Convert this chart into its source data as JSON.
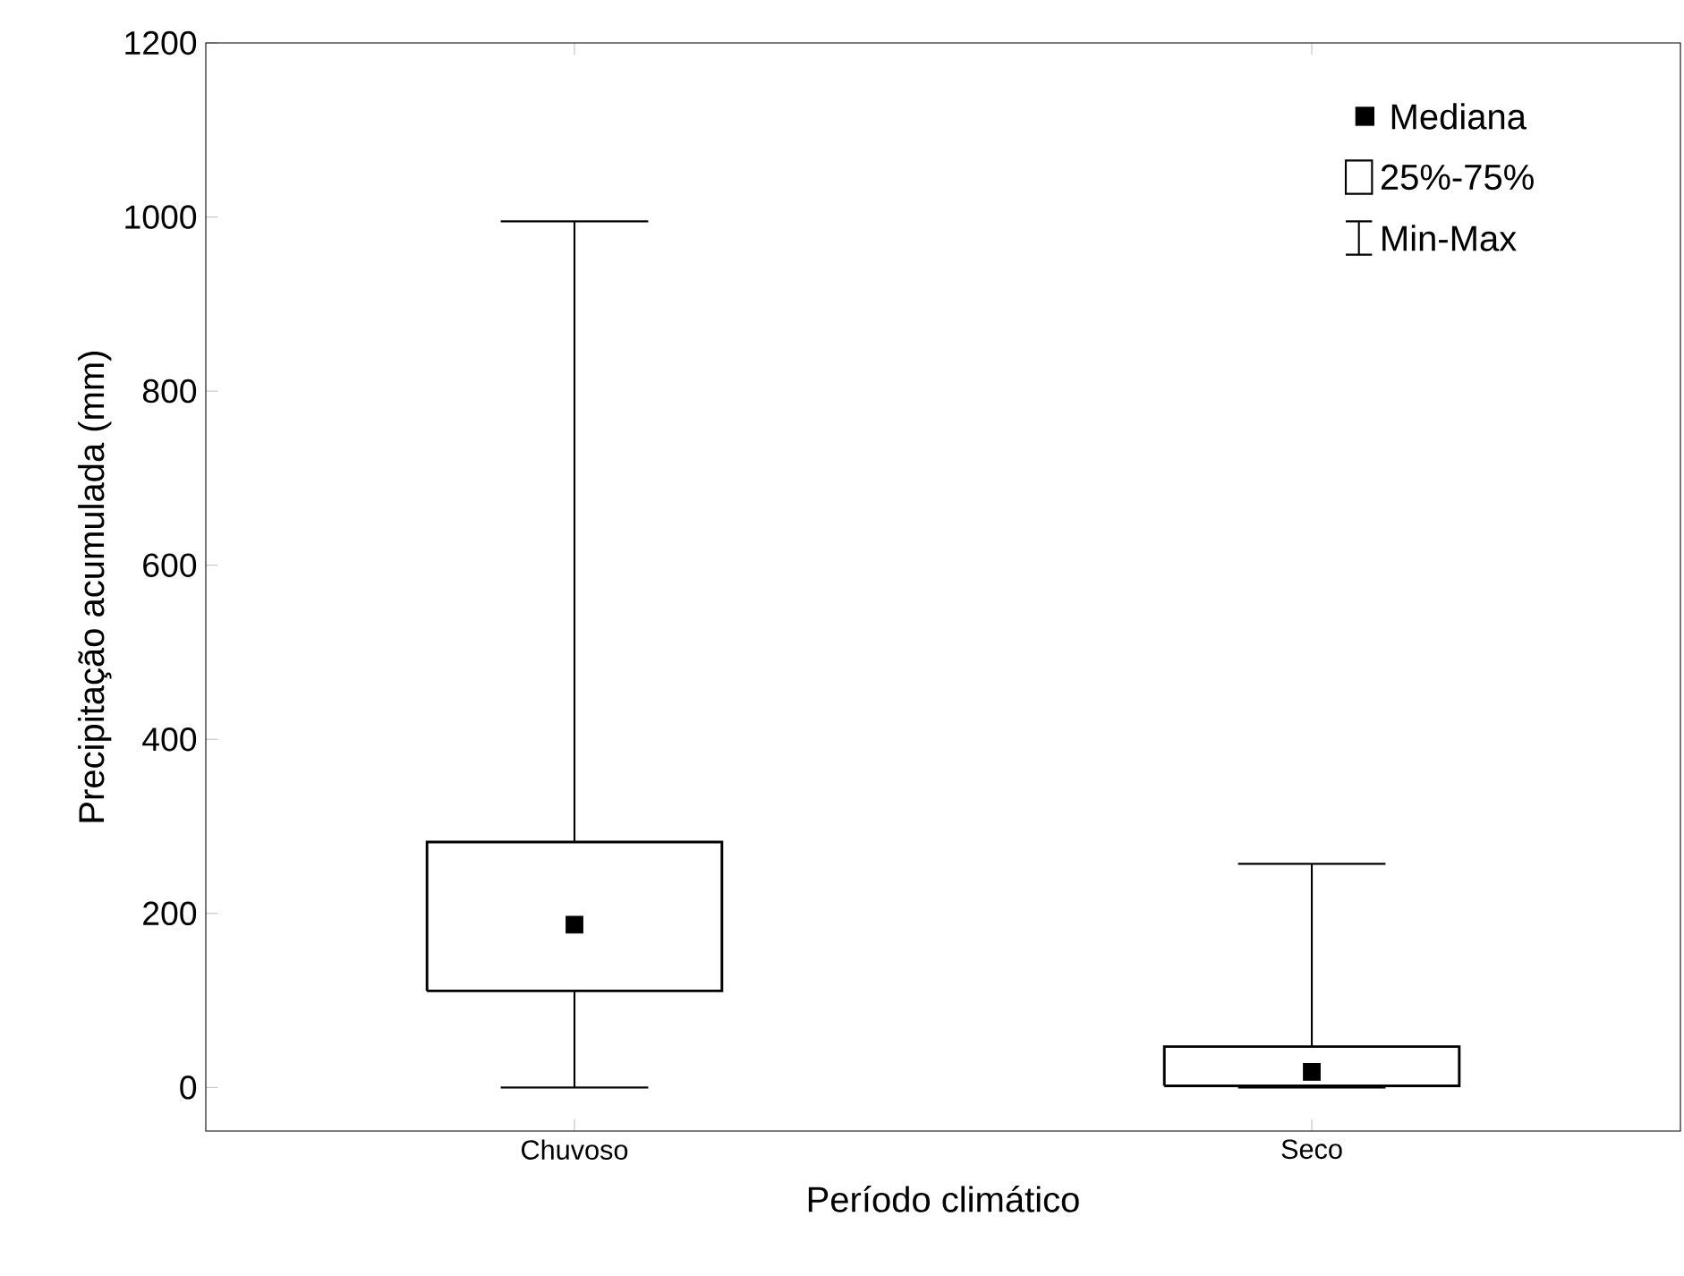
{
  "chart_data": {
    "type": "box",
    "xlabel": "Período climático",
    "ylabel": "Precipitação acumulada (mm)",
    "categories": [
      "Chuvoso",
      "Seco"
    ],
    "boxes": [
      {
        "low": 0,
        "q1": 111,
        "median": 187,
        "q3": 282,
        "high": 995
      },
      {
        "low": 0,
        "q1": 2,
        "median": 18,
        "q3": 47,
        "high": 257
      }
    ],
    "color": "#000000",
    "marker": "square",
    "ylim": [
      -50,
      1200
    ],
    "yticks": [
      0,
      200,
      400,
      600,
      800,
      1000,
      1200
    ],
    "annotations": [
      "Mediana",
      "25%-75%",
      "Min-Max"
    ]
  }
}
